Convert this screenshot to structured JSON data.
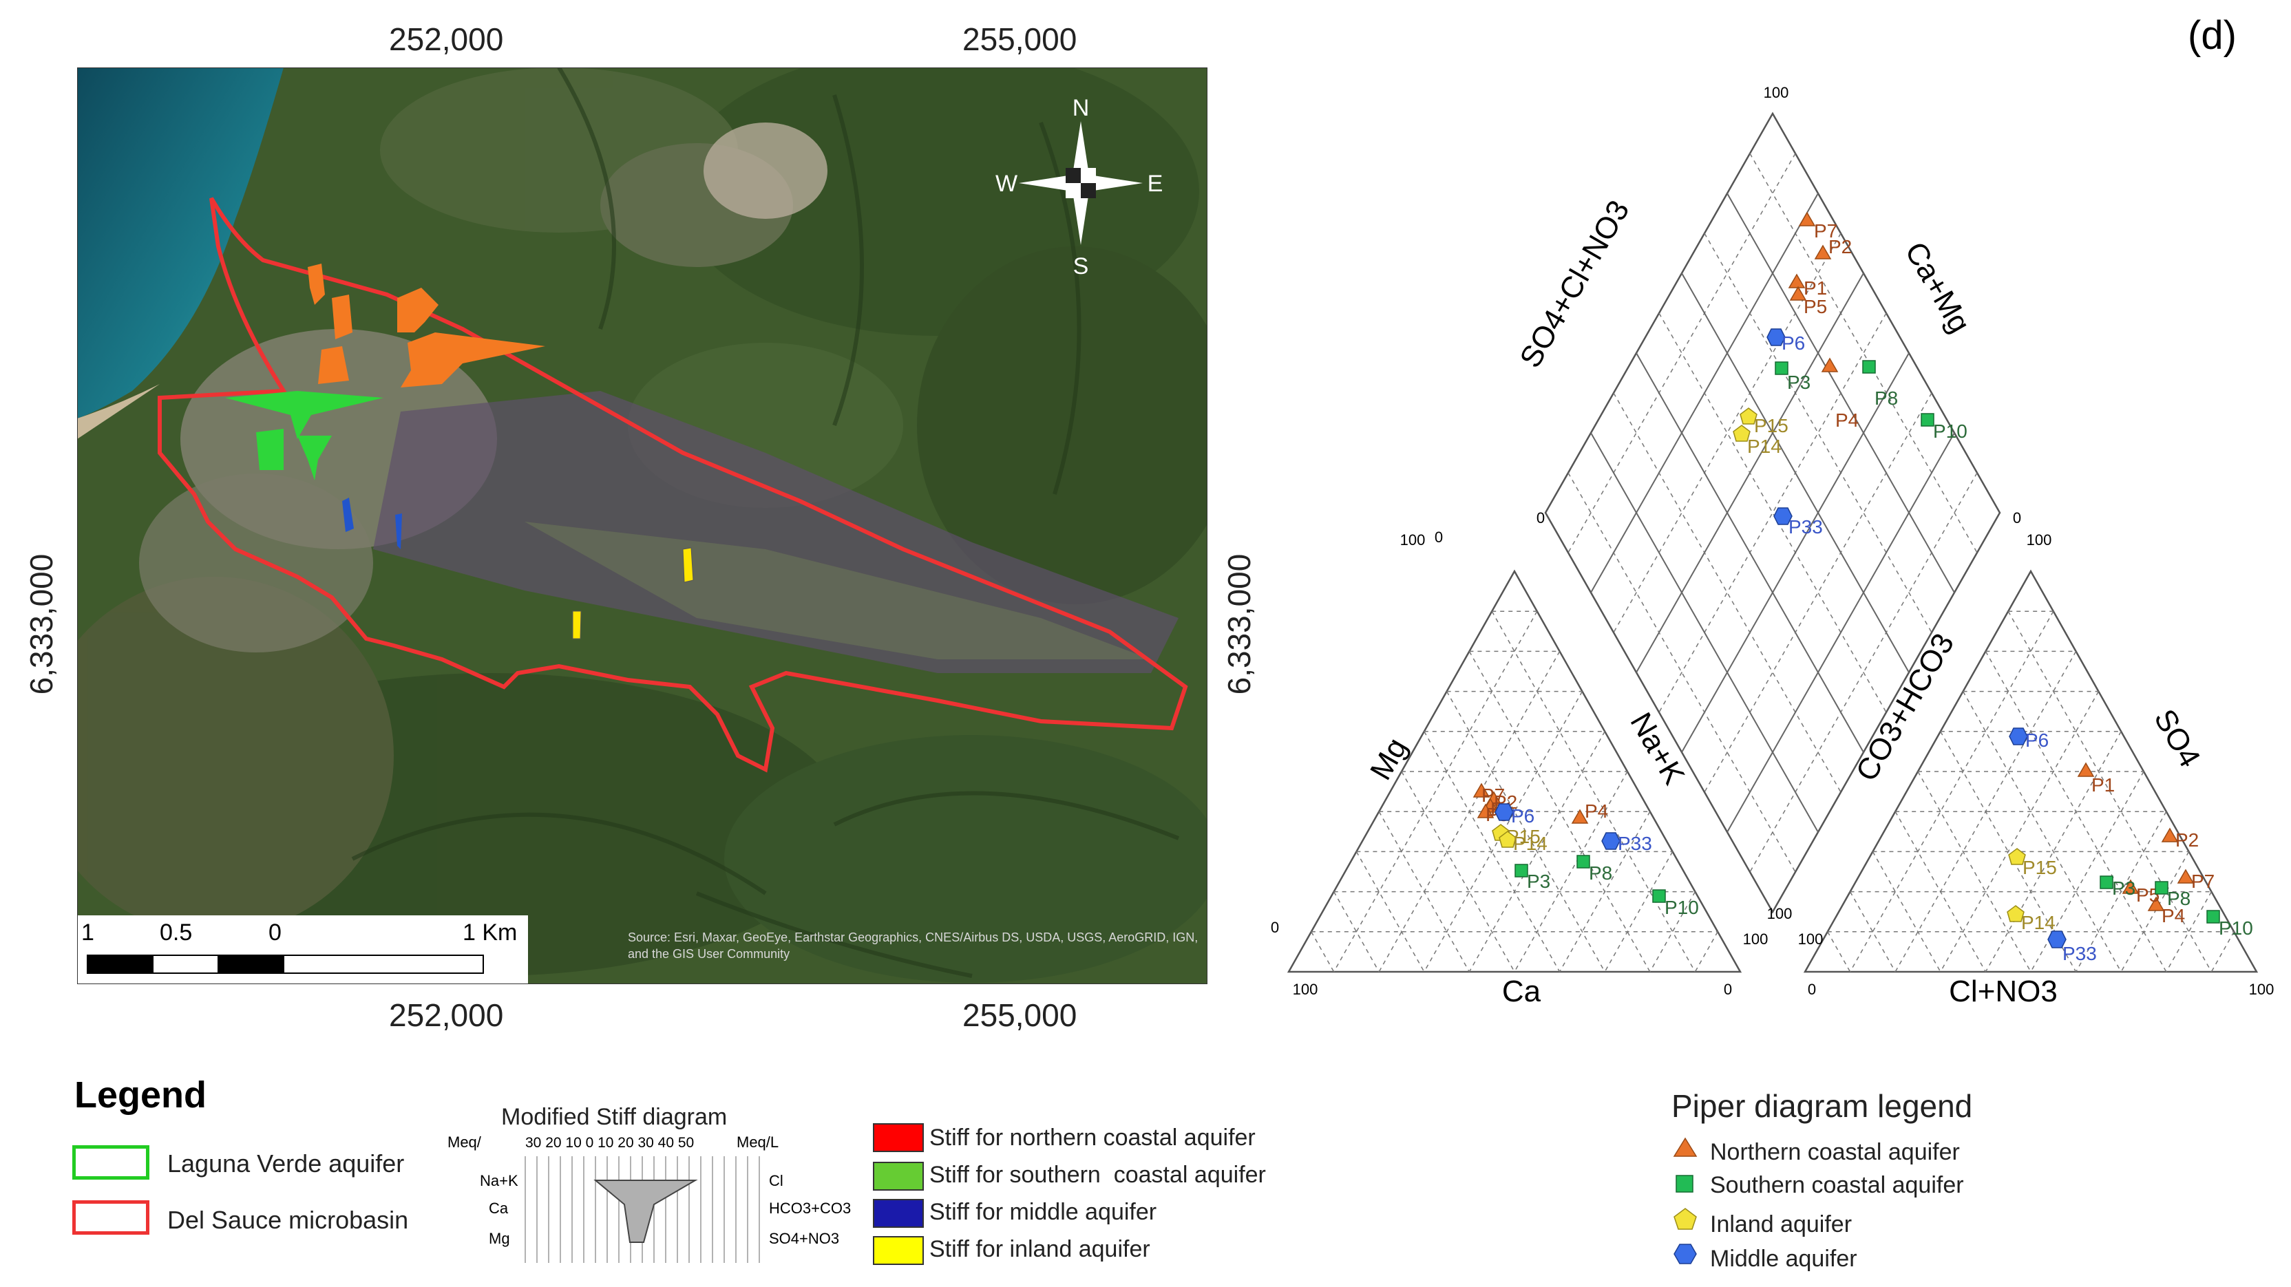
{
  "panel_label": "(d)",
  "map": {
    "easting_labels": [
      "252,000",
      "255,000"
    ],
    "northing_label": "6,333,000",
    "scalebar": {
      "labels": [
        "1",
        "0.5",
        "0",
        "1 Km"
      ]
    },
    "north_arrow": {
      "n": "N",
      "s": "S",
      "e": "E",
      "w": "W"
    },
    "attribution": "Source: Esri, Maxar, GeoEye, Earthstar Geographics, CNES/Airbus DS, USDA, USGS, AeroGRID, IGN, and the GIS User Community"
  },
  "legend": {
    "title": "Legend",
    "items": [
      {
        "label": "Laguna Verde aquifer",
        "color": "#22cc22"
      },
      {
        "label": "Del Sauce microbasin",
        "color": "#ee3333"
      }
    ]
  },
  "stiff_legend": {
    "title": "Modified Stiff diagram",
    "left_unit": "Meq/",
    "right_unit": "Meq/L",
    "scale": "30 20 10 0 10 20 30 40 50",
    "left_ions": [
      "Na+K",
      "Ca",
      "Mg"
    ],
    "right_ions": [
      "Cl",
      "HCO3+CO3",
      "SO4+NO3"
    ],
    "items": [
      {
        "label": "Stiff for northern coastal aquifer",
        "color": "#ff0000"
      },
      {
        "label": "Stiff for southern  coastal aquifer",
        "color": "#66cc33"
      },
      {
        "label": "Stiff for middle aquifer",
        "color": "#1a1aaa"
      },
      {
        "label": "Stiff for inland aquifer",
        "color": "#ffff00"
      }
    ]
  },
  "piper": {
    "axis_labels": {
      "mg": "Mg",
      "nak": "Na+K",
      "ca": "Ca",
      "co3hco3": "CO3+HCO3",
      "so4": "SO4",
      "clno3": "Cl+NO3",
      "so4clno3": "SO4+Cl+NO3",
      "camg": "Ca+Mg"
    },
    "tick_labels": {
      "t100": "100",
      "t0": "0"
    },
    "legend_title": "Piper diagram legend",
    "legend": [
      {
        "label": "Northern coastal aquifer",
        "color": "#e8732a",
        "marker": "triangle"
      },
      {
        "label": "Southern coastal aquifer",
        "color": "#22bb55",
        "marker": "square"
      },
      {
        "label": "Inland aquifer",
        "color": "#f2e23a",
        "marker": "pentagon"
      },
      {
        "label": "Middle aquifer",
        "color": "#3a6ee8",
        "marker": "hexagon"
      }
    ],
    "points": {
      "cation": [
        {
          "id": "P7",
          "group": "north"
        },
        {
          "id": "P2",
          "group": "north"
        },
        {
          "id": "P1",
          "group": "north"
        },
        {
          "id": "P5",
          "group": "north"
        },
        {
          "id": "P4",
          "group": "north"
        },
        {
          "id": "P6",
          "group": "middle"
        },
        {
          "id": "P33",
          "group": "middle"
        },
        {
          "id": "P15",
          "group": "inland"
        },
        {
          "id": "P14",
          "group": "inland"
        },
        {
          "id": "P3",
          "group": "south"
        },
        {
          "id": "P8",
          "group": "south"
        },
        {
          "id": "P10",
          "group": "south"
        }
      ],
      "anion": [
        {
          "id": "P6",
          "group": "middle"
        },
        {
          "id": "P1",
          "group": "north"
        },
        {
          "id": "P2",
          "group": "north"
        },
        {
          "id": "P7",
          "group": "north"
        },
        {
          "id": "P4",
          "group": "north"
        },
        {
          "id": "P5",
          "group": "north"
        },
        {
          "id": "P15",
          "group": "inland"
        },
        {
          "id": "P14",
          "group": "inland"
        },
        {
          "id": "P33",
          "group": "middle"
        },
        {
          "id": "P3",
          "group": "south"
        },
        {
          "id": "P8",
          "group": "south"
        },
        {
          "id": "P10",
          "group": "south"
        }
      ],
      "diamond": [
        {
          "id": "P7",
          "group": "north"
        },
        {
          "id": "P2",
          "group": "north"
        },
        {
          "id": "P1",
          "group": "north"
        },
        {
          "id": "P5",
          "group": "north"
        },
        {
          "id": "P6",
          "group": "middle"
        },
        {
          "id": "P3",
          "group": "south"
        },
        {
          "id": "P8",
          "group": "south"
        },
        {
          "id": "P10",
          "group": "south"
        },
        {
          "id": "P4",
          "group": "north"
        },
        {
          "id": "P15",
          "group": "inland"
        },
        {
          "id": "P14",
          "group": "inland"
        },
        {
          "id": "P33",
          "group": "middle"
        }
      ]
    }
  }
}
